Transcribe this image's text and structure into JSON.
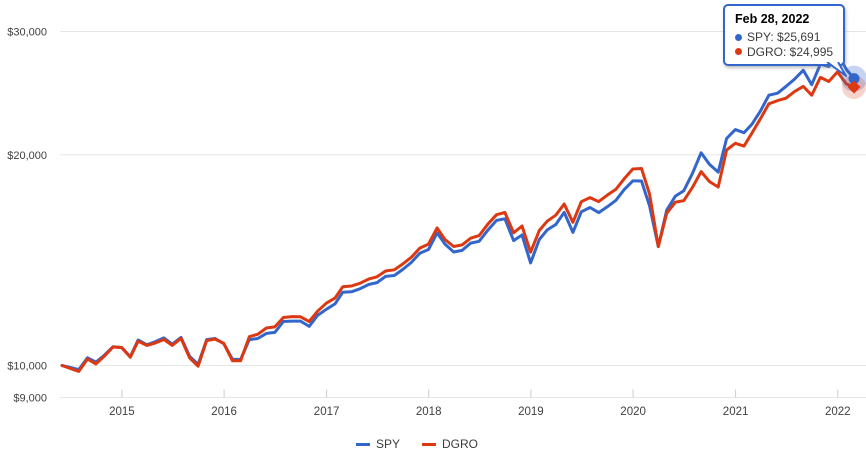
{
  "chart_data": {
    "type": "line",
    "title": "",
    "y_axis": {
      "scale": "log",
      "ticks": [
        {
          "label": "$30,000",
          "value": 30000
        },
        {
          "label": "$20,000",
          "value": 20000
        },
        {
          "label": "$10,000",
          "value": 10000
        },
        {
          "label": "$9,000",
          "value": 9000
        }
      ]
    },
    "x_axis": {
      "ticks": [
        {
          "label": "2015",
          "date": "2015-01-01"
        },
        {
          "label": "2016",
          "date": "2016-01-01"
        },
        {
          "label": "2017",
          "date": "2017-01-01"
        },
        {
          "label": "2018",
          "date": "2018-01-01"
        },
        {
          "label": "2019",
          "date": "2019-01-01"
        },
        {
          "label": "2020",
          "date": "2020-01-01"
        },
        {
          "label": "2021",
          "date": "2021-01-01"
        },
        {
          "label": "2022",
          "date": "2022-01-01"
        }
      ]
    },
    "legend_position": "bottom",
    "grid": true,
    "x": [
      "2014-06-01",
      "2014-07-31",
      "2014-08-31",
      "2014-09-30",
      "2014-10-31",
      "2014-11-30",
      "2014-12-31",
      "2015-01-31",
      "2015-02-28",
      "2015-03-31",
      "2015-04-30",
      "2015-05-31",
      "2015-06-30",
      "2015-07-31",
      "2015-08-31",
      "2015-09-30",
      "2015-10-31",
      "2015-11-30",
      "2015-12-31",
      "2016-01-31",
      "2016-02-29",
      "2016-03-31",
      "2016-04-30",
      "2016-05-31",
      "2016-06-30",
      "2016-07-31",
      "2016-08-31",
      "2016-09-30",
      "2016-10-31",
      "2016-11-30",
      "2016-12-31",
      "2017-01-31",
      "2017-02-28",
      "2017-03-31",
      "2017-04-30",
      "2017-05-31",
      "2017-06-30",
      "2017-07-31",
      "2017-08-31",
      "2017-09-30",
      "2017-10-31",
      "2017-11-30",
      "2017-12-31",
      "2018-01-31",
      "2018-02-28",
      "2018-03-31",
      "2018-04-30",
      "2018-05-31",
      "2018-06-30",
      "2018-07-31",
      "2018-08-31",
      "2018-09-30",
      "2018-10-31",
      "2018-11-30",
      "2018-12-31",
      "2019-01-31",
      "2019-02-28",
      "2019-03-31",
      "2019-04-30",
      "2019-05-31",
      "2019-06-30",
      "2019-07-31",
      "2019-08-31",
      "2019-09-30",
      "2019-10-31",
      "2019-11-30",
      "2019-12-31",
      "2020-01-31",
      "2020-02-29",
      "2020-03-31",
      "2020-04-30",
      "2020-05-31",
      "2020-06-30",
      "2020-07-31",
      "2020-08-31",
      "2020-09-30",
      "2020-10-31",
      "2020-11-30",
      "2020-12-31",
      "2021-01-31",
      "2021-02-28",
      "2021-03-31",
      "2021-04-30",
      "2021-05-31",
      "2021-06-30",
      "2021-07-31",
      "2021-08-31",
      "2021-09-30",
      "2021-10-31",
      "2021-11-30",
      "2021-12-31",
      "2022-01-31",
      "2022-02-28"
    ],
    "series": [
      {
        "name": "SPY",
        "color": "#3366cc",
        "values": [
          10000,
          9866,
          10256,
          10114,
          10353,
          10638,
          10611,
          10297,
          10876,
          10705,
          10810,
          10949,
          10727,
          10969,
          10300,
          10036,
          10890,
          10930,
          10742,
          10207,
          10199,
          10884,
          10927,
          11113,
          11152,
          11559,
          11573,
          11574,
          11374,
          11792,
          12032,
          12247,
          12728,
          12745,
          12871,
          13052,
          13136,
          13406,
          13445,
          13715,
          14039,
          14469,
          14644,
          15470,
          14907,
          14528,
          14604,
          14959,
          15047,
          15607,
          16116,
          16203,
          15083,
          15362,
          14012,
          15134,
          15620,
          15903,
          16547,
          15491,
          16578,
          16817,
          16536,
          16847,
          17213,
          17836,
          18353,
          18346,
          16893,
          14788,
          16666,
          17459,
          17770,
          18817,
          20130,
          19377,
          18895,
          21100,
          21728,
          21506,
          22104,
          23108,
          24330,
          24491,
          25042,
          25653,
          26417,
          25186,
          26954,
          26738,
          27944,
          26502,
          25691
        ]
      },
      {
        "name": "DGRO",
        "color": "#dc3912",
        "values": [
          10000,
          9807,
          10215,
          10053,
          10322,
          10627,
          10611,
          10276,
          10833,
          10684,
          10767,
          10894,
          10684,
          10936,
          10249,
          9976,
          10857,
          10908,
          10753,
          10156,
          10158,
          10993,
          11080,
          11313,
          11353,
          11709,
          11747,
          11736,
          11556,
          11957,
          12273,
          12480,
          12957,
          12987,
          13103,
          13287,
          13386,
          13647,
          13700,
          13962,
          14278,
          14715,
          14908,
          15718,
          15131,
          14790,
          14867,
          15198,
          15333,
          15919,
          16422,
          16543,
          15475,
          15823,
          14516,
          15588,
          16073,
          16396,
          17010,
          16018,
          17142,
          17372,
          17148,
          17504,
          17850,
          18478,
          19087,
          19117,
          17569,
          14788,
          16499,
          17110,
          17201,
          17970,
          18922,
          18311,
          17988,
          20319,
          20772,
          20581,
          21463,
          22530,
          23649,
          23903,
          24090,
          24627,
          25043,
          24330,
          25795,
          25455,
          26267,
          25256,
          24995
        ]
      }
    ]
  },
  "tooltip": {
    "title": "Feb 28, 2022",
    "rows": [
      {
        "name": "SPY",
        "value": "$25,691",
        "text": "SPY: $25,691",
        "color": "#3366cc"
      },
      {
        "name": "DGRO",
        "value": "$24,995",
        "text": "DGRO: $24,995",
        "color": "#dc3912"
      }
    ]
  },
  "colors": {
    "spy": "#3366cc",
    "dgro": "#dc3912",
    "gridline": "#e6e6e6",
    "tick": "#c9ced3",
    "axis_text": "#404040",
    "tooltip_border": "#3366cc"
  }
}
